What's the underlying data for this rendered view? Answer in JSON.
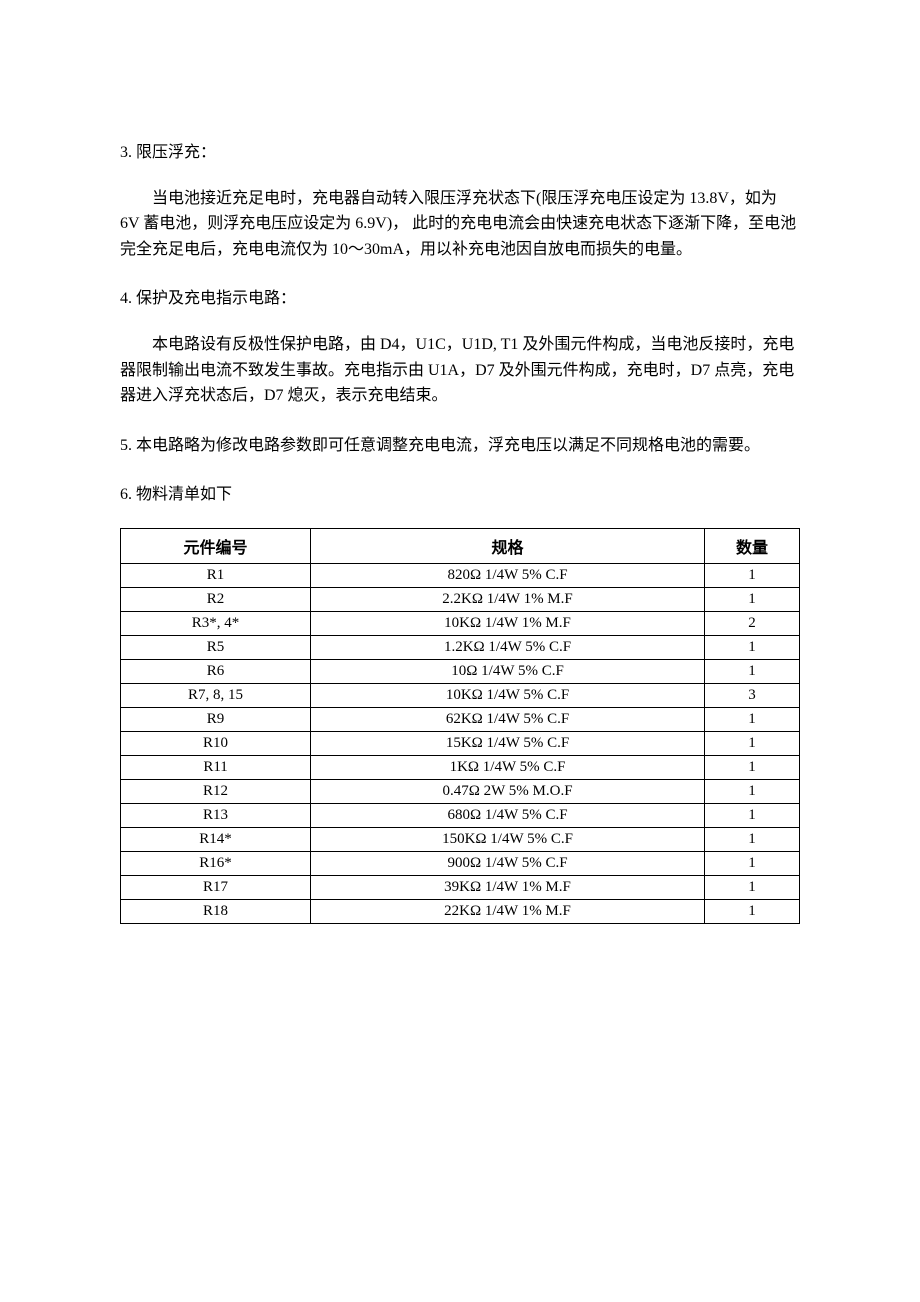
{
  "sections": {
    "s3": {
      "heading": "3.  限压浮充：",
      "paragraph": "当电池接近充足电时，充电器自动转入限压浮充状态下(限压浮充电压设定为 13.8V，如为 6V 蓄电池，则浮充电压应设定为 6.9V)， 此时的充电电流会由快速充电状态下逐渐下降，至电池完全充足电后，充电电流仅为 10～30mA，用以补充电池因自放电而损失的电量。"
    },
    "s4": {
      "heading": "4.  保护及充电指示电路：",
      "paragraph": "本电路设有反极性保护电路，由 D4，U1C，U1D, T1 及外围元件构成，当电池反接时，充电器限制输出电流不致发生事故。充电指示由 U1A，D7 及外围元件构成，充电时，D7 点亮，充电器进入浮充状态后，D7 熄灭，表示充电结束。"
    },
    "s5": {
      "heading": "5.  本电路略为修改电路参数即可任意调整充电电流，浮充电压以满足不同规格电池的需要。"
    },
    "s6": {
      "heading": "6.  物料清单如下"
    }
  },
  "table": {
    "columns": [
      "元件编号",
      "规格",
      "数量"
    ],
    "rows": [
      [
        "R1",
        "820Ω 1/4W 5% C.F",
        "1"
      ],
      [
        "R2",
        "2.2KΩ 1/4W 1% M.F",
        "1"
      ],
      [
        "R3*, 4*",
        "10KΩ 1/4W 1% M.F",
        "2"
      ],
      [
        "R5",
        "1.2KΩ 1/4W 5% C.F",
        "1"
      ],
      [
        "R6",
        "10Ω 1/4W 5% C.F",
        "1"
      ],
      [
        "R7, 8, 15",
        "10KΩ 1/4W 5% C.F",
        "3"
      ],
      [
        "R9",
        "62KΩ 1/4W 5% C.F",
        "1"
      ],
      [
        "R10",
        "15KΩ 1/4W 5% C.F",
        "1"
      ],
      [
        "R11",
        "1KΩ 1/4W 5% C.F",
        "1"
      ],
      [
        "R12",
        "0.47Ω 2W 5% M.O.F",
        "1"
      ],
      [
        "R13",
        "680Ω 1/4W 5% C.F",
        "1"
      ],
      [
        "R14*",
        "150KΩ 1/4W 5% C.F",
        "1"
      ],
      [
        "R16*",
        "900Ω 1/4W 5% C.F",
        "1"
      ],
      [
        "R17",
        "39KΩ 1/4W 1% M.F",
        "1"
      ],
      [
        "R18",
        "22KΩ 1/4W 1% M.F",
        "1"
      ]
    ]
  }
}
